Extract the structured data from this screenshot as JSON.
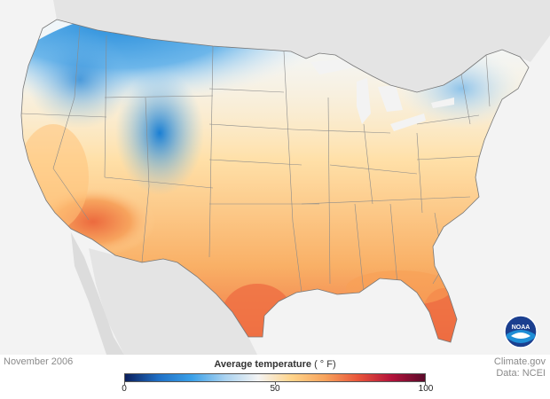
{
  "map": {
    "period_label": "November 2006",
    "credit_line1": "Climate.gov",
    "credit_line2": "Data: NCEI",
    "logo_text": "NOAA"
  },
  "legend": {
    "title": "Average temperature",
    "unit": "( ° F)",
    "min": 0,
    "mid": 50,
    "max": 100,
    "tick_labels": [
      "0",
      "50",
      "100"
    ],
    "colors": [
      "#0b1f5c",
      "#1f6fc5",
      "#3aa0e8",
      "#a9d2f0",
      "#f4f4f4",
      "#ffd48a",
      "#f7a35c",
      "#e8543a",
      "#b3123a",
      "#5a0a2a"
    ]
  }
}
